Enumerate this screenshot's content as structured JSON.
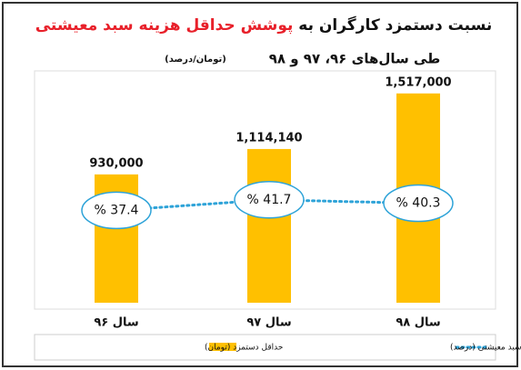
{
  "chart_data": {
    "type": "bar-line",
    "title": [
      "نسبت دستمزد کارگران به",
      "پوشش حداقل هزینه سبد معیشتی"
    ],
    "subtitle": "طی سال‌های ۹۶، ۹۷ و ۹۸",
    "unit_note": "(تومان/درصد)",
    "categories": [
      "سال ۹۶",
      "سال ۹۷",
      "سال ۹۸"
    ],
    "series": [
      {
        "name": "حداقل دستمزد (تومان)",
        "color": "#ffc000",
        "kind": "bar",
        "values": [
          930000,
          1114140,
          1517000
        ],
        "value_labels": [
          "930,000",
          "1,114,140",
          "1,517,000"
        ]
      },
      {
        "name": "نسبت دستمزد به پوشش حداقل هزینه سبد معیشتی (درصد)",
        "color": "#2ea3d8",
        "kind": "line",
        "axis": "y2",
        "values": [
          37.4,
          41.7,
          40.3
        ],
        "value_labels": [
          "% 37.4",
          "% 41.7",
          "% 40.3"
        ]
      }
    ],
    "ylim": [
      0,
      1700000
    ],
    "y2lim": [
      0,
      95
    ]
  }
}
